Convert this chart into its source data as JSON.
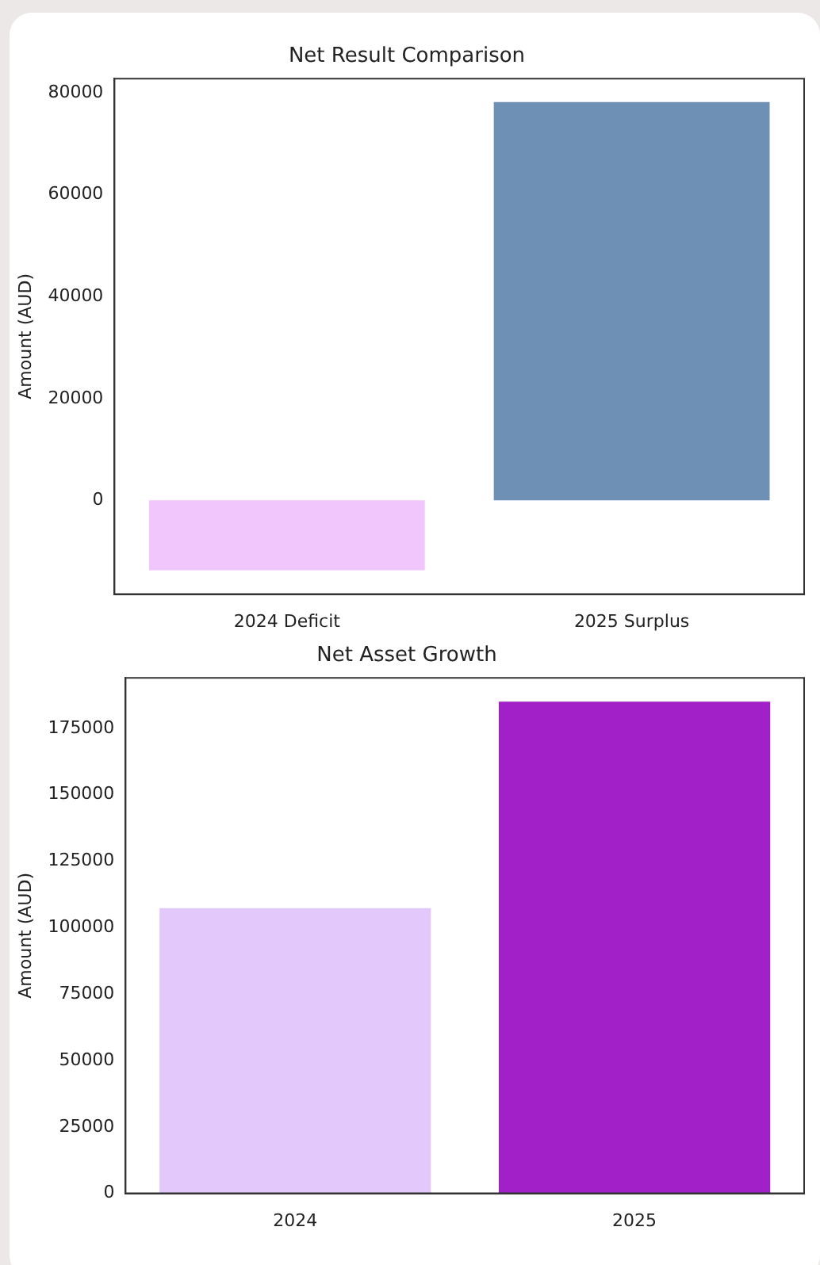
{
  "chart_data": [
    {
      "type": "bar",
      "title": "Net Result Comparison",
      "ylabel": "Amount (AUD)",
      "categories": [
        "2024 Deficit",
        "2025 Surplus"
      ],
      "values": [
        -13700,
        78200
      ],
      "colors": [
        "#f0c6fc",
        "#6e90b4"
      ],
      "ylim": [
        -18400,
        82800
      ],
      "yticks": [
        0,
        20000,
        40000,
        60000,
        80000
      ]
    },
    {
      "type": "bar",
      "title": "Net Asset Growth",
      "ylabel": "Amount (AUD)",
      "categories": [
        "2024",
        "2025"
      ],
      "values": [
        107300,
        185000
      ],
      "colors": [
        "#e3c8fc",
        "#a120c8"
      ],
      "ylim": [
        0,
        194000
      ],
      "yticks": [
        0,
        25000,
        50000,
        75000,
        100000,
        125000,
        150000,
        175000
      ]
    }
  ]
}
